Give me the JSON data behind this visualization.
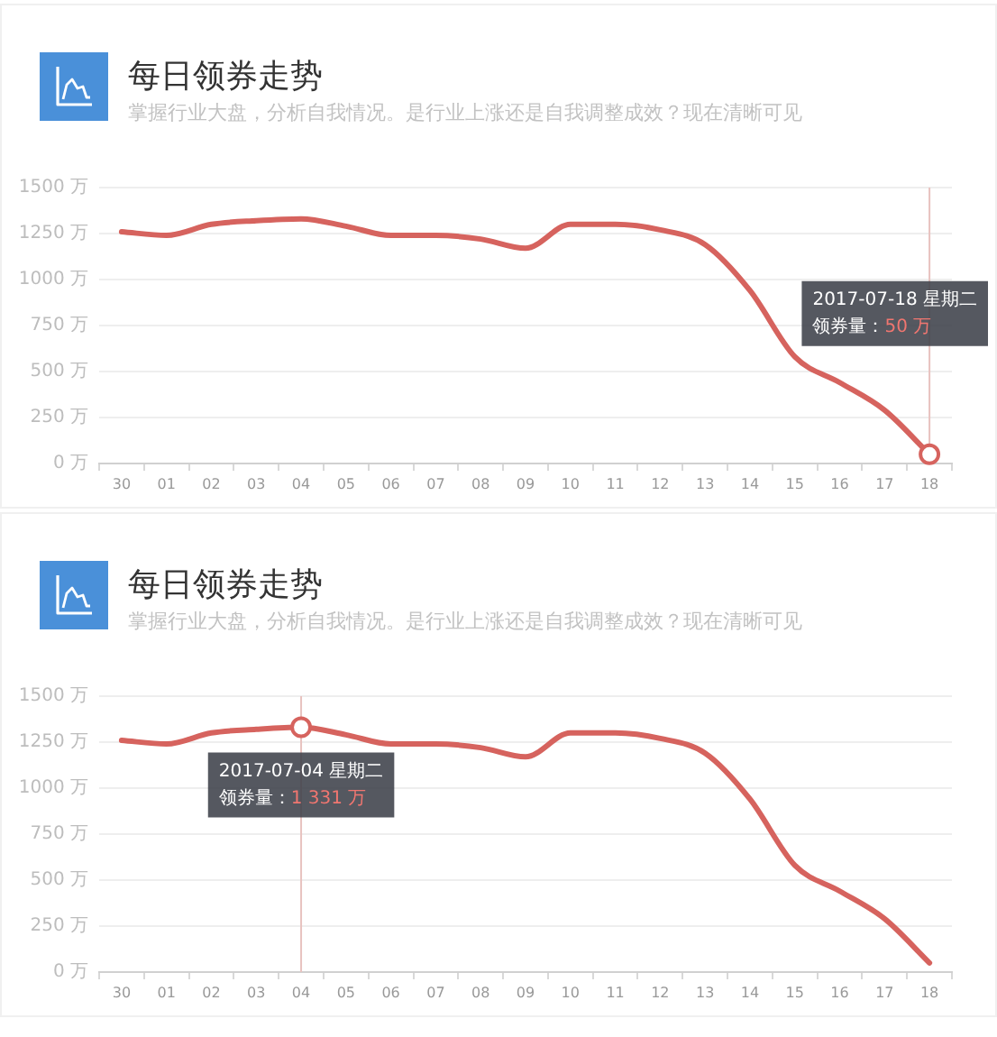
{
  "chart_data": [
    {
      "type": "line",
      "title": "每日领券走势",
      "subtitle": "掌握行业大盘，分析自我情况。是行业上涨还是自我调整成效？现在清晰可见",
      "categories": [
        "30",
        "01",
        "02",
        "03",
        "04",
        "05",
        "06",
        "07",
        "08",
        "09",
        "10",
        "11",
        "12",
        "13",
        "14",
        "15",
        "16",
        "17",
        "18"
      ],
      "series": [
        {
          "color": "#d6635e",
          "values": [
            1260,
            1240,
            1300,
            1320,
            1330,
            1290,
            1240,
            1240,
            1220,
            1170,
            1300,
            1300,
            1270,
            1190,
            940,
            580,
            440,
            290,
            50
          ]
        }
      ],
      "ylim": [
        0,
        1500
      ],
      "yticks": [
        {
          "value": 0,
          "label": "0 万"
        },
        {
          "value": 250,
          "label": "250 万"
        },
        {
          "value": 500,
          "label": "500 万"
        },
        {
          "value": 750,
          "label": "750 万"
        },
        {
          "value": 1000,
          "label": "1000 万"
        },
        {
          "value": 1250,
          "label": "1250 万"
        },
        {
          "value": 1500,
          "label": "1500 万"
        }
      ],
      "grid": "y",
      "ref_lines": [
        {
          "axis": "x",
          "value": "18",
          "color": "#e8c2bf"
        }
      ],
      "annotations": [
        "2017-07-18 星期二",
        "领券量：",
        "50 万"
      ]
    },
    {
      "type": "line",
      "title": "每日领券走势",
      "subtitle": "掌握行业大盘，分析自我情况。是行业上涨还是自我调整成效？现在清晰可见",
      "categories": [
        "30",
        "01",
        "02",
        "03",
        "04",
        "05",
        "06",
        "07",
        "08",
        "09",
        "10",
        "11",
        "12",
        "13",
        "14",
        "15",
        "16",
        "17",
        "18"
      ],
      "series": [
        {
          "color": "#d6635e",
          "values": [
            1260,
            1240,
            1300,
            1320,
            1331,
            1290,
            1240,
            1240,
            1220,
            1170,
            1300,
            1300,
            1270,
            1190,
            940,
            580,
            440,
            290,
            50
          ]
        }
      ],
      "ylim": [
        0,
        1500
      ],
      "yticks": [
        {
          "value": 0,
          "label": "0 万"
        },
        {
          "value": 250,
          "label": "250 万"
        },
        {
          "value": 500,
          "label": "500 万"
        },
        {
          "value": 750,
          "label": "750 万"
        },
        {
          "value": 1000,
          "label": "1000 万"
        },
        {
          "value": 1250,
          "label": "1250 万"
        },
        {
          "value": 1500,
          "label": "1500 万"
        }
      ],
      "grid": "y",
      "ref_lines": [
        {
          "axis": "x",
          "value": "04",
          "color": "#e8c2bf"
        }
      ],
      "annotations": [
        "2017-07-04 星期二",
        "领券量：",
        "1 331 万"
      ]
    }
  ]
}
